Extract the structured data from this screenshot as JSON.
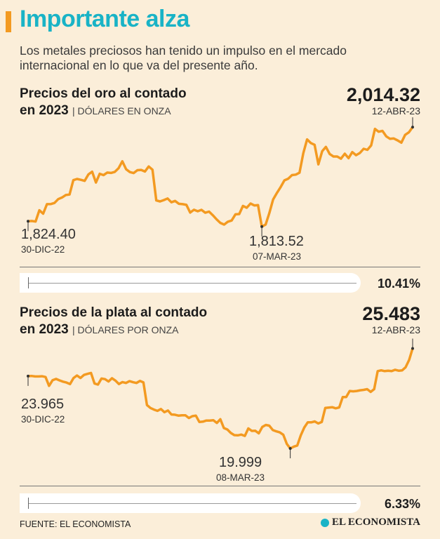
{
  "header": {
    "title": "Importante alza",
    "subtitle": "Los metales preciosos han tenido un impulso en el mercado internacional en lo que va del presente año."
  },
  "colors": {
    "accent": "#f39a21",
    "title": "#19b3c6",
    "background": "#fbeed9",
    "line": "#f39a21"
  },
  "chart_data": [
    {
      "type": "line",
      "title_line1": "Precios del oro al contado",
      "title_line2": "en 2023",
      "unit": "DÓLARES EN ONZA",
      "latest_value": "2,014.32",
      "latest_date": "12-ABR-23",
      "start_value": "1,824.40",
      "start_date": "30-DIC-22",
      "low_value": "1,813.52",
      "low_date": "07-MAR-23",
      "change": "10.41%",
      "change_fraction": 0.1041,
      "ylim": [
        1795,
        2030
      ],
      "values": [
        1824.4,
        1824.9,
        1823.7,
        1846.6,
        1839.6,
        1858.9,
        1859.0,
        1861.3,
        1869.1,
        1872.3,
        1877.2,
        1878.3,
        1907.2,
        1909.6,
        1908.0,
        1905.8,
        1918.9,
        1924.4,
        1902.4,
        1920.2,
        1917.4,
        1922.6,
        1921.9,
        1924.0,
        1931.2,
        1945.3,
        1929.4,
        1923.6,
        1921.5,
        1927.3,
        1928.0,
        1924.7,
        1934.8,
        1928.3,
        1866.3,
        1864.3,
        1867.0,
        1870.3,
        1862.7,
        1865.4,
        1859.5,
        1858.9,
        1857.5,
        1841.9,
        1847.5,
        1844.6,
        1847.4,
        1841.6,
        1843.9,
        1836.5,
        1828.3,
        1821.0,
        1817.7,
        1823.5,
        1825.9,
        1838.3,
        1838.9,
        1855.3,
        1851.6,
        1860.1,
        1856.3,
        1856.8,
        1813.5,
        1817.7,
        1840.8,
        1868.3,
        1881.5,
        1893.5,
        1906.8,
        1910.3,
        1917.5,
        1918.5,
        1922.2,
        1961.6,
        1989.5,
        1982.1,
        1978.6,
        1939.1,
        1965.6,
        1974.4,
        1960.0,
        1955.0,
        1955.0,
        1950.6,
        1960.6,
        1951.6,
        1963.9,
        1957.6,
        1962.1,
        1970.5,
        1968.4,
        1977.4,
        2010.8,
        2004.9,
        2006.7,
        1995.6,
        1990.7,
        1991.3,
        1987.6,
        1982.9,
        1998.6,
        2003.6,
        2014.3
      ]
    },
    {
      "type": "line",
      "title_line1": "Precios de la plata al contado",
      "title_line2": "en 2023",
      "unit": "DÓLARES POR ONZA",
      "latest_value": "25.483",
      "latest_date": "12-ABR-23",
      "start_value": "23.965",
      "start_date": "30-DIC-22",
      "low_value": "19.999",
      "low_date": "08-MAR-23",
      "change": "6.33%",
      "change_fraction": 0.0633,
      "ylim": [
        19.5,
        26.0
      ],
      "values": [
        23.965,
        23.972,
        23.945,
        23.948,
        23.958,
        23.915,
        23.43,
        23.74,
        23.81,
        23.73,
        23.66,
        23.61,
        23.53,
        23.86,
        24.0,
        23.86,
        24.03,
        24.09,
        24.14,
        23.56,
        23.5,
        23.83,
        23.8,
        23.67,
        23.85,
        23.72,
        23.53,
        23.64,
        23.59,
        23.69,
        23.63,
        23.59,
        23.7,
        23.62,
        22.38,
        22.22,
        22.13,
        22.06,
        22.16,
        21.99,
        22.08,
        21.86,
        21.85,
        21.8,
        21.82,
        21.82,
        21.67,
        21.77,
        21.8,
        21.45,
        21.47,
        21.53,
        21.53,
        21.55,
        21.4,
        21.6,
        21.12,
        21.04,
        20.85,
        20.73,
        20.72,
        20.76,
        20.69,
        21.1,
        20.96,
        20.97,
        20.83,
        21.18,
        21.29,
        21.25,
        21.01,
        20.94,
        20.88,
        20.75,
        20.25,
        20.0,
        20.1,
        20.16,
        20.72,
        21.15,
        21.43,
        21.43,
        21.48,
        21.37,
        21.45,
        22.22,
        22.24,
        22.26,
        22.2,
        22.25,
        22.82,
        22.82,
        23.15,
        23.13,
        23.15,
        23.19,
        23.21,
        23.25,
        23.1,
        23.25,
        24.24,
        24.28,
        24.24,
        24.26,
        24.24,
        24.31,
        24.26,
        24.28,
        24.45,
        24.85,
        25.483
      ]
    }
  ],
  "footer": {
    "source": "FUENTE: EL ECONOMISTA",
    "logo_text": "EL ECONOMISTA"
  }
}
